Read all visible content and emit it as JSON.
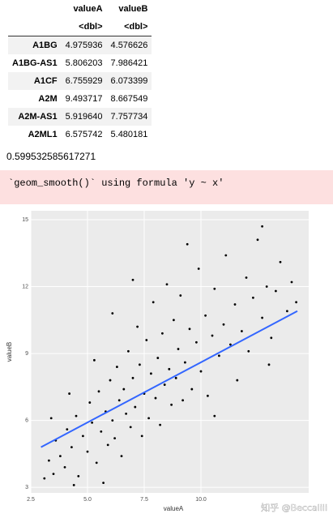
{
  "table": {
    "columns": [
      "valueA",
      "valueB"
    ],
    "types": [
      "<dbl>",
      "<dbl>"
    ],
    "rows": [
      [
        "A1BG",
        "4.975936",
        "4.576626"
      ],
      [
        "A1BG-AS1",
        "5.806203",
        "7.986421"
      ],
      [
        "A1CF",
        "6.755929",
        "6.073399"
      ],
      [
        "A2M",
        "9.493717",
        "8.667549"
      ],
      [
        "A2M-AS1",
        "5.919640",
        "7.757734"
      ],
      [
        "A2ML1",
        "6.575742",
        "5.480181"
      ]
    ]
  },
  "output": "0.599532585617271",
  "message": "`geom_smooth()` using formula 'y ~ x'",
  "chart_data": {
    "type": "scatter",
    "x_label": "valueA",
    "y_label": "valueB",
    "xlim": [
      2.5,
      14.75
    ],
    "ylim": [
      2.75,
      15.4
    ],
    "xticks": [
      2.5,
      {
        "value": 5,
        "label": "5.0"
      },
      7.5,
      {
        "value": 10,
        "label": "10.0"
      }
    ],
    "yticks": [
      3,
      6,
      9,
      12,
      15
    ],
    "grid": true,
    "color": "#000000",
    "x": [
      3.1,
      3.3,
      3.5,
      3.6,
      3.8,
      4.0,
      4.1,
      4.3,
      4.5,
      4.6,
      4.8,
      5.0,
      5.1,
      5.2,
      5.4,
      5.5,
      5.6,
      5.8,
      5.9,
      6.0,
      6.1,
      6.2,
      6.3,
      6.4,
      6.5,
      6.6,
      6.7,
      6.8,
      6.9,
      7.0,
      7.1,
      7.2,
      7.3,
      7.4,
      7.5,
      7.6,
      7.7,
      7.8,
      7.9,
      8.0,
      8.1,
      8.2,
      8.3,
      8.4,
      8.5,
      8.6,
      8.7,
      8.8,
      8.9,
      9.0,
      9.1,
      9.2,
      9.3,
      9.5,
      9.6,
      9.8,
      9.9,
      10.0,
      10.2,
      10.3,
      10.5,
      10.6,
      10.8,
      11.0,
      11.1,
      11.3,
      11.5,
      11.6,
      11.8,
      12.0,
      12.1,
      12.3,
      12.5,
      12.7,
      12.9,
      13.1,
      13.3,
      13.5,
      13.8,
      14.0,
      14.2,
      4.2,
      3.4,
      5.3,
      6.1,
      12.7,
      9.4,
      7.0,
      10.6,
      13.0,
      5.7,
      4.4
    ],
    "y": [
      3.4,
      4.2,
      3.6,
      5.1,
      4.4,
      3.9,
      5.6,
      4.8,
      6.2,
      3.5,
      5.3,
      4.6,
      6.8,
      5.9,
      4.1,
      7.3,
      5.5,
      6.4,
      4.9,
      7.8,
      6.0,
      5.2,
      8.4,
      6.9,
      4.4,
      7.4,
      6.3,
      9.1,
      5.7,
      7.9,
      6.6,
      10.2,
      8.5,
      5.3,
      7.2,
      9.6,
      6.1,
      8.1,
      11.3,
      7.0,
      8.8,
      5.8,
      9.9,
      7.6,
      12.1,
      8.3,
      6.7,
      10.5,
      7.9,
      9.2,
      11.6,
      6.9,
      8.6,
      10.1,
      7.4,
      9.5,
      12.8,
      8.2,
      10.7,
      7.1,
      9.8,
      11.9,
      8.9,
      10.3,
      13.4,
      9.4,
      11.2,
      7.8,
      10.0,
      12.4,
      9.1,
      11.5,
      14.1,
      10.6,
      12.0,
      9.7,
      11.8,
      13.1,
      10.9,
      12.2,
      11.3,
      7.2,
      6.1,
      8.7,
      10.8,
      14.7,
      13.9,
      12.3,
      6.2,
      8.5,
      3.2,
      3.1
    ],
    "smooth": {
      "color": "#3366ff",
      "x": [
        2.95,
        14.25
      ],
      "y": [
        4.8,
        10.9
      ]
    }
  },
  "watermark": "知乎 @Beccaliii"
}
